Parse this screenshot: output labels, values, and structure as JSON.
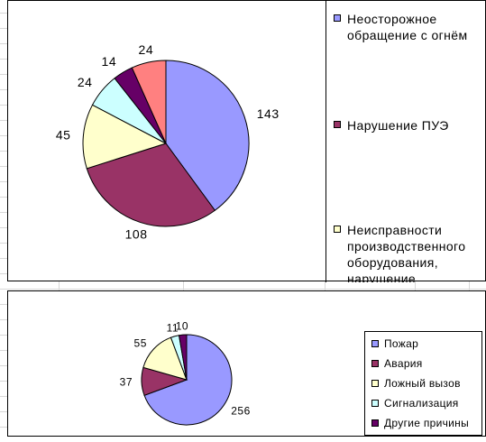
{
  "chart_data": [
    {
      "type": "pie",
      "title": "",
      "categories": [
        "Неосторожное обращение с огнём",
        "Нарушение ПУЭ",
        "Неисправности производственного оборудования, нарушение",
        "",
        "",
        ""
      ],
      "values": [
        143,
        108,
        45,
        24,
        14,
        24
      ],
      "colors": [
        "#9999ff",
        "#993366",
        "#ffffcc",
        "#ccffff",
        "#660066",
        "#ff8080"
      ],
      "data_labels": [
        "143",
        "108",
        "45",
        "24",
        "14",
        "24"
      ],
      "legend": "right",
      "legend_items": [
        {
          "label": "Неосторожное обращение с огнём",
          "color": "#9999ff"
        },
        {
          "label": "Нарушение ПУЭ",
          "color": "#993366"
        },
        {
          "label": "Неисправности производственного оборудования, нарушение",
          "color": "#ffffcc"
        }
      ]
    },
    {
      "type": "pie",
      "title": "",
      "categories": [
        "Пожар",
        "Авария",
        "Ложный вызов",
        "Сигнализация",
        "Другие причины"
      ],
      "values": [
        256,
        37,
        55,
        11,
        10
      ],
      "colors": [
        "#9999ff",
        "#993366",
        "#ffffcc",
        "#ccffff",
        "#660066"
      ],
      "data_labels": [
        "256",
        "37",
        "55",
        "11",
        "10"
      ],
      "legend": "right",
      "legend_items": [
        {
          "label": "Пожар",
          "color": "#9999ff"
        },
        {
          "label": "Авария",
          "color": "#993366"
        },
        {
          "label": "Ложный вызов",
          "color": "#ffffcc"
        },
        {
          "label": "Сигнализация",
          "color": "#ccffff"
        },
        {
          "label": "Другие причины",
          "color": "#660066"
        }
      ]
    }
  ]
}
